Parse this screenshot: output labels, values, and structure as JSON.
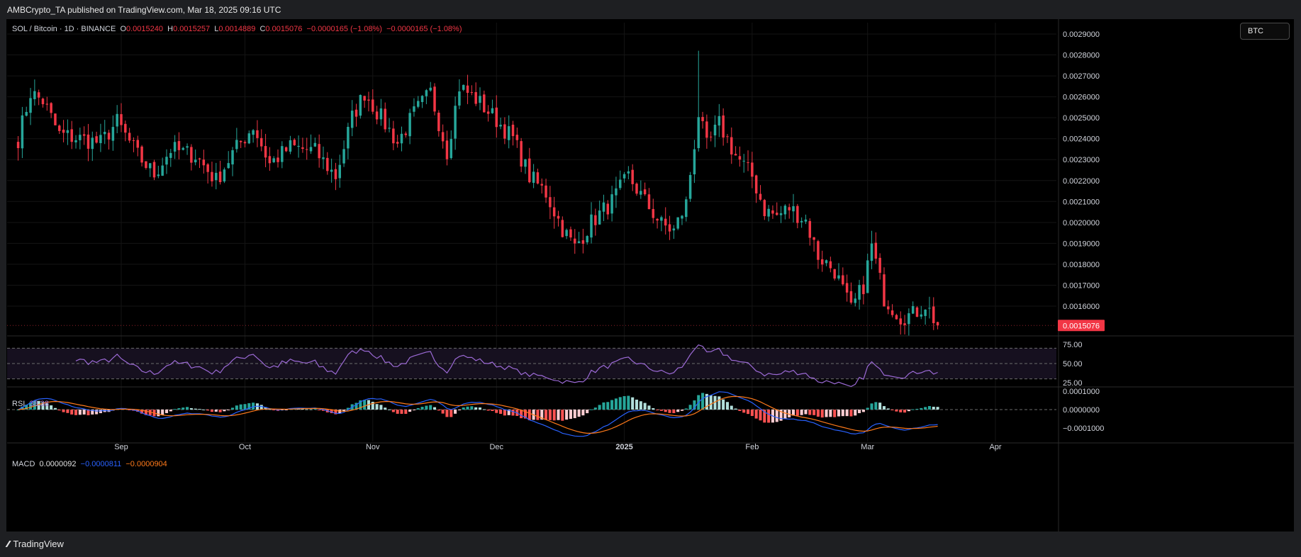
{
  "header": {
    "published": "AMBCrypto_TA published on TradingView.com, Mar 18, 2025 09:16 UTC"
  },
  "footer": {
    "brand": "TradingView"
  },
  "legend": {
    "symbol": "SOL / Bitcoin · 1D · BINANCE",
    "o_label": "O",
    "o": "0.0015240",
    "h_label": "H",
    "h": "0.0015257",
    "l_label": "L",
    "l": "0.0014889",
    "c_label": "C",
    "c": "0.0015076",
    "change": "−0.0000165 (−1.08%)",
    "change2": "−0.0000165 (−1.08%)"
  },
  "currency_button": "BTC",
  "rsi": {
    "label": "RSI",
    "value": "38.38"
  },
  "macd": {
    "label": "MACD",
    "hist": "0.0000092",
    "macd": "−0.0000811",
    "signal": "−0.0000904"
  },
  "colors": {
    "up": "#26a69a",
    "down": "#f23645",
    "rsi": "#9c6ad6",
    "macd": "#2962ff",
    "signal": "#ff7a1a",
    "price_tag": "#f23645"
  },
  "chart_data": [
    {
      "type": "candlestick",
      "title": "SOL / Bitcoin · 1D · BINANCE",
      "x_tick_labels": [
        "Sep",
        "Oct",
        "Nov",
        "Dec",
        "2025",
        "Feb",
        "Mar",
        "Apr"
      ],
      "y_tick_labels": [
        "0.0029000",
        "0.0028000",
        "0.0027000",
        "0.0026000",
        "0.0025000",
        "0.0024000",
        "0.0023000",
        "0.0022000",
        "0.0021000",
        "0.0020000",
        "0.0019000",
        "0.0018000",
        "0.0017000",
        "0.0016000"
      ],
      "ylim": [
        0.00145,
        0.00295
      ],
      "last_price": "0.0015076",
      "start_date": "2024-08-07",
      "end_date": "2025-03-18",
      "close_anchors": [
        [
          "2024-08-07",
          0.0024
        ],
        [
          "2024-08-10",
          0.00262
        ],
        [
          "2024-08-13",
          0.00258
        ],
        [
          "2024-08-17",
          0.00242
        ],
        [
          "2024-08-22",
          0.0024
        ],
        [
          "2024-08-27",
          0.00238
        ],
        [
          "2024-08-31",
          0.00248
        ],
        [
          "2024-09-05",
          0.00232
        ],
        [
          "2024-09-09",
          0.00223
        ],
        [
          "2024-09-13",
          0.00235
        ],
        [
          "2024-09-19",
          0.00232
        ],
        [
          "2024-09-24",
          0.0022
        ],
        [
          "2024-09-28",
          0.00233
        ],
        [
          "2024-10-03",
          0.00246
        ],
        [
          "2024-10-07",
          0.00228
        ],
        [
          "2024-10-12",
          0.00236
        ],
        [
          "2024-10-18",
          0.00234
        ],
        [
          "2024-10-23",
          0.00222
        ],
        [
          "2024-10-27",
          0.0025
        ],
        [
          "2024-10-30",
          0.00262
        ],
        [
          "2024-11-03",
          0.0025
        ],
        [
          "2024-11-07",
          0.00238
        ],
        [
          "2024-11-11",
          0.00252
        ],
        [
          "2024-11-15",
          0.00262
        ],
        [
          "2024-11-19",
          0.00234
        ],
        [
          "2024-11-22",
          0.00265
        ],
        [
          "2024-11-26",
          0.00259
        ],
        [
          "2024-12-01",
          0.00249
        ],
        [
          "2024-12-05",
          0.0024
        ],
        [
          "2024-12-09",
          0.00222
        ],
        [
          "2024-12-13",
          0.00214
        ],
        [
          "2024-12-17",
          0.00197
        ],
        [
          "2024-12-20",
          0.00188
        ],
        [
          "2024-12-24",
          0.002
        ],
        [
          "2024-12-29",
          0.0021
        ],
        [
          "2025-01-02",
          0.00222
        ],
        [
          "2025-01-06",
          0.0021
        ],
        [
          "2025-01-10",
          0.00199
        ],
        [
          "2025-01-13",
          0.00196
        ],
        [
          "2025-01-16",
          0.00209
        ],
        [
          "2025-01-19",
          0.00252
        ],
        [
          "2025-01-21",
          0.00236
        ],
        [
          "2025-01-24",
          0.00247
        ],
        [
          "2025-01-28",
          0.00232
        ],
        [
          "2025-02-01",
          0.00222
        ],
        [
          "2025-02-04",
          0.00206
        ],
        [
          "2025-02-07",
          0.00203
        ],
        [
          "2025-02-10",
          0.00207
        ],
        [
          "2025-02-14",
          0.00201
        ],
        [
          "2025-02-17",
          0.00184
        ],
        [
          "2025-02-21",
          0.00177
        ],
        [
          "2025-02-25",
          0.00158
        ],
        [
          "2025-02-28",
          0.0017
        ],
        [
          "2025-03-02",
          0.00189
        ],
        [
          "2025-03-05",
          0.00164
        ],
        [
          "2025-03-09",
          0.00155
        ],
        [
          "2025-03-12",
          0.00156
        ],
        [
          "2025-03-15",
          0.00161
        ],
        [
          "2025-03-18",
          0.0015076
        ]
      ]
    },
    {
      "type": "line",
      "title": "RSI",
      "y_tick_labels": [
        "75.00",
        "50.00",
        "25.00"
      ],
      "ylim": [
        20,
        80
      ],
      "bands": [
        70,
        50,
        30
      ],
      "last_value": 38.38
    },
    {
      "type": "bar",
      "title": "MACD",
      "y_tick_labels": [
        "0.0001000",
        "0.0000000",
        "−0.0001000"
      ],
      "ylim": [
        -0.00013,
        0.00012
      ],
      "last_histogram": 9.2e-06,
      "last_macd": -8.11e-05,
      "last_signal": -9.04e-05
    }
  ]
}
